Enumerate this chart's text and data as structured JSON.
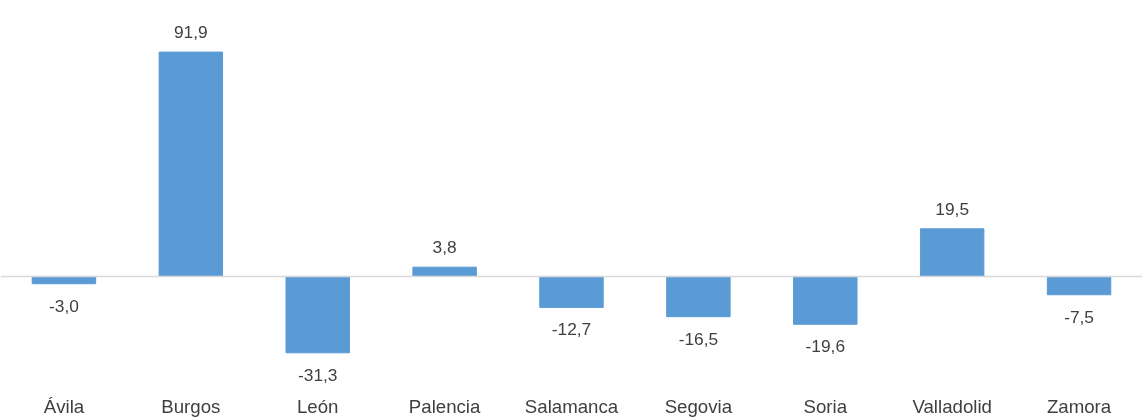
{
  "chart_data": {
    "type": "bar",
    "categories": [
      "Ávila",
      "Burgos",
      "León",
      "Palencia",
      "Salamanca",
      "Segovia",
      "Soria",
      "Valladolid",
      "Zamora"
    ],
    "values": [
      -3.0,
      91.9,
      -31.3,
      3.8,
      -12.7,
      -16.5,
      -19.6,
      19.5,
      -7.5
    ],
    "value_labels": [
      "-3,0",
      "91,9",
      "-31,3",
      "3,8",
      "-12,7",
      "-16,5",
      "-19,6",
      "19,5",
      "-7,5"
    ],
    "color": "#5b9bd5"
  }
}
